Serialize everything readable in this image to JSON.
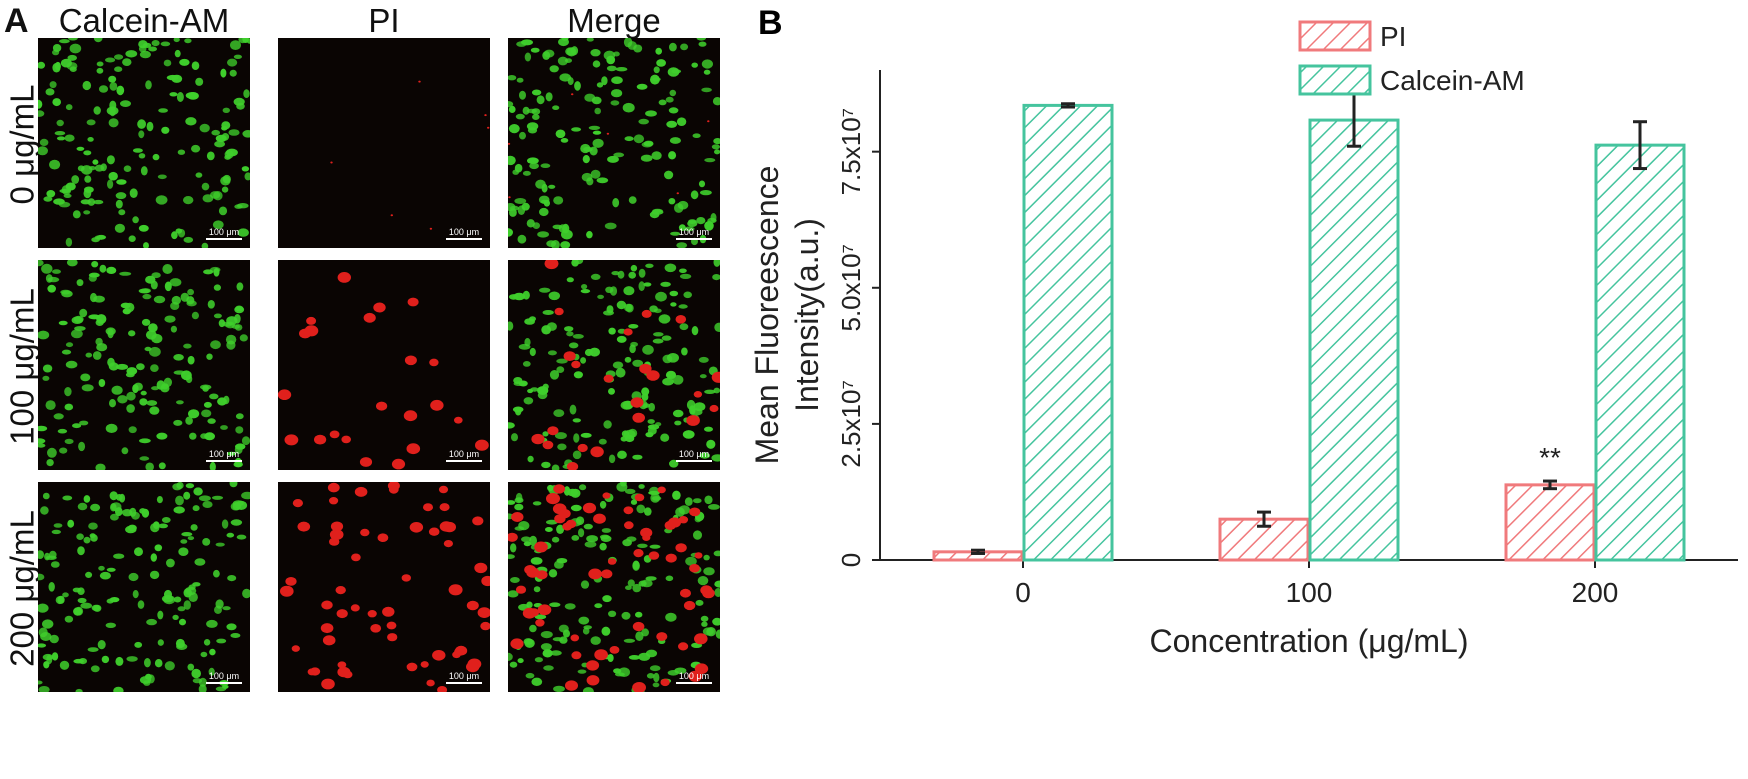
{
  "panel_a": {
    "label": "A",
    "columns": [
      "Calcein-AM",
      "PI",
      "Merge"
    ],
    "rows": [
      "0 μg/mL",
      "100 μg/mL",
      "200 μg/mL"
    ],
    "scale_bar": "100 μm",
    "colors": {
      "background": "#0a0503",
      "live": "#3fcf2c",
      "dead": "#e0201c"
    },
    "micrographs": [
      {
        "row": 0,
        "channel": "calcein",
        "image": "green-cells"
      },
      {
        "row": 0,
        "channel": "pi",
        "image": "red-cells"
      },
      {
        "row": 0,
        "channel": "merge",
        "image": "merged-cells"
      },
      {
        "row": 1,
        "channel": "calcein",
        "image": "green-cells"
      },
      {
        "row": 1,
        "channel": "pi",
        "image": "red-cells"
      },
      {
        "row": 1,
        "channel": "merge",
        "image": "merged-cells"
      },
      {
        "row": 2,
        "channel": "calcein",
        "image": "green-cells"
      },
      {
        "row": 2,
        "channel": "pi",
        "image": "red-cells"
      },
      {
        "row": 2,
        "channel": "merge",
        "image": "merged-cells"
      }
    ]
  },
  "panel_b": {
    "label": "B"
  },
  "chart_data": {
    "type": "bar",
    "title": "",
    "categories": [
      "0",
      "100",
      "200"
    ],
    "xlabel": "Concentration (μg/mL)",
    "ylabel_line1": "Mean Fluoreescence",
    "ylabel_line2": "Intensity(a.u.)",
    "ylim": [
      0,
      90000000
    ],
    "y_ticks": [
      {
        "value": 0,
        "label": "0"
      },
      {
        "value": 25000000,
        "label": "2.5x10⁷"
      },
      {
        "value": 50000000,
        "label": "5.0x10⁷"
      },
      {
        "value": 75000000,
        "label": "7.5x10⁷"
      }
    ],
    "series": [
      {
        "name": "PI",
        "color": "#f07a7c",
        "values": [
          1500000,
          7500000,
          13800000
        ],
        "errors": [
          300000,
          1300000,
          700000
        ]
      },
      {
        "name": "Calcein-AM",
        "color": "#45c49e",
        "values": [
          83500000,
          80800000,
          76200000
        ],
        "errors": [
          300000,
          4800000,
          4300000
        ]
      }
    ],
    "annotations": [
      {
        "category": "200",
        "series": "PI",
        "text": "**"
      }
    ],
    "legend": "top-right",
    "grid": false
  }
}
